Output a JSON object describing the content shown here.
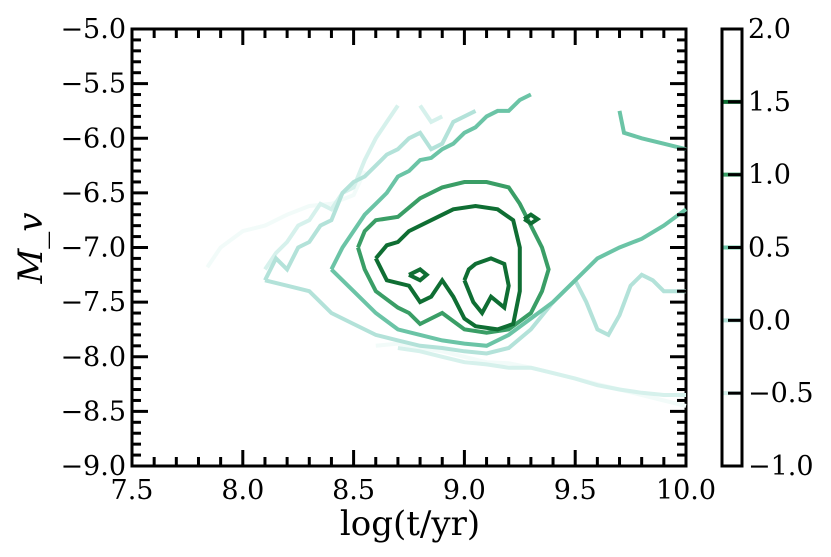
{
  "chart_data": {
    "type": "contour",
    "title": "",
    "xlabel": "log(t/yr)",
    "ylabel": "M_v",
    "xlim": [
      7.5,
      10.0
    ],
    "ylim": [
      -9.0,
      -5.0
    ],
    "y_axis_inverted": true,
    "x_ticks": [
      "7.5",
      "8.0",
      "8.5",
      "9.0",
      "9.5",
      "10.0"
    ],
    "y_ticks": [
      "−5.0",
      "−5.5",
      "−6.0",
      "−6.5",
      "−7.0",
      "−7.5",
      "−8.0",
      "−8.5",
      "−9.0"
    ],
    "colorbar": {
      "range": [
        -1.0,
        2.0
      ],
      "ticks": [
        "−1.0",
        "−0.5",
        "0.0",
        "0.5",
        "1.0",
        "1.5",
        "2.0"
      ],
      "level_lines": [
        -0.5,
        0.0,
        0.5,
        1.0,
        1.5
      ]
    },
    "colormap": "BuGn",
    "level_colors": {
      "-1.0": "#f2fbf9",
      "-0.5": "#d6f1ec",
      "0.0": "#b3e2d9",
      "0.5": "#6bc4a6",
      "1.0": "#3a9e66",
      "1.5": "#0f6e33"
    },
    "contours": [
      {
        "level": -1.0,
        "paths": [
          [
            [
              7.84,
              -7.18
            ],
            [
              7.9,
              -7.0
            ],
            [
              8.0,
              -6.85
            ],
            [
              8.1,
              -6.8
            ],
            [
              8.2,
              -6.7
            ],
            [
              8.3,
              -6.62
            ],
            [
              8.4,
              -6.6
            ],
            [
              8.5,
              -6.52
            ],
            [
              8.55,
              -6.3
            ]
          ],
          [
            [
              8.6,
              -7.9
            ],
            [
              8.7,
              -7.88
            ],
            [
              8.8,
              -7.92
            ],
            [
              8.9,
              -7.95
            ],
            [
              9.0,
              -8.0
            ],
            [
              9.1,
              -8.05
            ],
            [
              9.2,
              -8.06
            ],
            [
              9.3,
              -8.1
            ],
            [
              9.4,
              -8.15
            ],
            [
              9.5,
              -8.2
            ],
            [
              9.6,
              -8.25
            ],
            [
              9.7,
              -8.3
            ],
            [
              9.8,
              -8.35
            ],
            [
              9.9,
              -8.4
            ],
            [
              10.0,
              -8.45
            ]
          ]
        ]
      },
      {
        "level": -0.5,
        "paths": [
          [
            [
              8.1,
              -7.2
            ],
            [
              8.15,
              -7.05
            ],
            [
              8.2,
              -6.95
            ],
            [
              8.25,
              -6.8
            ],
            [
              8.3,
              -6.75
            ],
            [
              8.35,
              -6.6
            ],
            [
              8.4,
              -6.65
            ],
            [
              8.45,
              -6.5
            ],
            [
              8.5,
              -6.45
            ],
            [
              8.55,
              -6.2
            ],
            [
              8.6,
              -6.0
            ],
            [
              8.65,
              -5.85
            ],
            [
              8.7,
              -5.7
            ]
          ],
          [
            [
              8.8,
              -5.7
            ],
            [
              8.85,
              -5.85
            ],
            [
              8.9,
              -5.8
            ]
          ],
          [
            [
              8.7,
              -7.92
            ],
            [
              8.8,
              -7.95
            ],
            [
              8.9,
              -8.0
            ],
            [
              9.0,
              -8.05
            ],
            [
              9.1,
              -8.07
            ],
            [
              9.2,
              -8.1
            ],
            [
              9.3,
              -8.1
            ],
            [
              9.4,
              -8.15
            ],
            [
              9.5,
              -8.2
            ],
            [
              9.6,
              -8.26
            ],
            [
              9.7,
              -8.3
            ],
            [
              9.8,
              -8.33
            ],
            [
              9.9,
              -8.35
            ],
            [
              10.0,
              -8.35
            ]
          ]
        ]
      },
      {
        "level": 0.0,
        "paths": [
          [
            [
              8.1,
              -7.3
            ],
            [
              8.15,
              -7.1
            ],
            [
              8.2,
              -7.2
            ],
            [
              8.25,
              -7.0
            ],
            [
              8.3,
              -6.95
            ],
            [
              8.35,
              -6.8
            ],
            [
              8.4,
              -6.75
            ],
            [
              8.45,
              -6.5
            ],
            [
              8.5,
              -6.4
            ],
            [
              8.55,
              -6.35
            ],
            [
              8.6,
              -6.25
            ],
            [
              8.65,
              -6.15
            ],
            [
              8.7,
              -6.1
            ],
            [
              8.75,
              -6.0
            ],
            [
              8.8,
              -5.95
            ],
            [
              8.85,
              -6.1
            ],
            [
              8.9,
              -6.05
            ],
            [
              8.95,
              -5.85
            ],
            [
              9.0,
              -5.8
            ],
            [
              9.05,
              -5.75
            ]
          ],
          [
            [
              8.1,
              -7.3
            ],
            [
              8.2,
              -7.35
            ],
            [
              8.3,
              -7.4
            ],
            [
              8.4,
              -7.6
            ],
            [
              8.5,
              -7.7
            ],
            [
              8.6,
              -7.8
            ],
            [
              8.7,
              -7.85
            ],
            [
              8.8,
              -7.9
            ],
            [
              8.9,
              -7.92
            ],
            [
              9.0,
              -7.95
            ],
            [
              9.1,
              -7.97
            ],
            [
              9.2,
              -7.92
            ],
            [
              9.3,
              -7.75
            ],
            [
              9.4,
              -7.5
            ],
            [
              9.5,
              -7.3
            ],
            [
              9.55,
              -7.5
            ],
            [
              9.6,
              -7.75
            ],
            [
              9.65,
              -7.8
            ],
            [
              9.7,
              -7.62
            ],
            [
              9.75,
              -7.35
            ],
            [
              9.8,
              -7.25
            ],
            [
              9.85,
              -7.3
            ],
            [
              9.9,
              -7.4
            ],
            [
              10.0,
              -7.4
            ]
          ]
        ]
      },
      {
        "level": 0.5,
        "paths": [
          [
            [
              8.4,
              -7.2
            ],
            [
              8.45,
              -7.0
            ],
            [
              8.5,
              -6.85
            ],
            [
              8.55,
              -6.7
            ],
            [
              8.6,
              -6.6
            ],
            [
              8.65,
              -6.5
            ],
            [
              8.7,
              -6.35
            ],
            [
              8.75,
              -6.3
            ],
            [
              8.8,
              -6.2
            ],
            [
              8.85,
              -6.18
            ],
            [
              8.9,
              -6.1
            ],
            [
              8.95,
              -6.05
            ],
            [
              9.0,
              -5.95
            ],
            [
              9.05,
              -5.9
            ],
            [
              9.1,
              -5.8
            ],
            [
              9.15,
              -5.75
            ],
            [
              9.2,
              -5.75
            ],
            [
              9.25,
              -5.65
            ],
            [
              9.3,
              -5.6
            ]
          ],
          [
            [
              8.4,
              -7.2
            ],
            [
              8.5,
              -7.4
            ],
            [
              8.6,
              -7.6
            ],
            [
              8.7,
              -7.75
            ],
            [
              8.8,
              -7.8
            ],
            [
              8.9,
              -7.85
            ],
            [
              9.0,
              -7.88
            ],
            [
              9.1,
              -7.9
            ],
            [
              9.2,
              -7.8
            ],
            [
              9.3,
              -7.65
            ],
            [
              9.4,
              -7.5
            ],
            [
              9.5,
              -7.3
            ],
            [
              9.6,
              -7.1
            ],
            [
              9.7,
              -7.0
            ],
            [
              9.8,
              -6.92
            ],
            [
              9.9,
              -6.8
            ],
            [
              10.0,
              -6.65
            ]
          ],
          [
            [
              9.7,
              -5.75
            ],
            [
              9.72,
              -5.95
            ],
            [
              9.8,
              -6.0
            ],
            [
              9.9,
              -6.05
            ],
            [
              10.0,
              -6.1
            ]
          ]
        ]
      },
      {
        "level": 1.0,
        "paths": [
          [
            [
              8.52,
              -7.0
            ],
            [
              8.55,
              -6.85
            ],
            [
              8.6,
              -6.75
            ],
            [
              8.7,
              -6.72
            ],
            [
              8.8,
              -6.55
            ],
            [
              8.9,
              -6.45
            ],
            [
              9.0,
              -6.4
            ],
            [
              9.1,
              -6.4
            ],
            [
              9.2,
              -6.45
            ],
            [
              9.25,
              -6.6
            ],
            [
              9.3,
              -6.8
            ],
            [
              9.35,
              -7.0
            ],
            [
              9.38,
              -7.2
            ],
            [
              9.35,
              -7.4
            ],
            [
              9.3,
              -7.6
            ],
            [
              9.2,
              -7.75
            ],
            [
              9.1,
              -7.78
            ],
            [
              9.0,
              -7.75
            ],
            [
              8.9,
              -7.6
            ],
            [
              8.8,
              -7.7
            ],
            [
              8.75,
              -7.6
            ],
            [
              8.7,
              -7.55
            ],
            [
              8.6,
              -7.4
            ],
            [
              8.55,
              -7.2
            ],
            [
              8.52,
              -7.0
            ]
          ]
        ]
      },
      {
        "level": 1.5,
        "paths": [
          [
            [
              8.6,
              -7.1
            ],
            [
              8.65,
              -6.98
            ],
            [
              8.7,
              -6.95
            ],
            [
              8.75,
              -6.85
            ],
            [
              8.85,
              -6.75
            ],
            [
              8.95,
              -6.65
            ],
            [
              9.05,
              -6.62
            ],
            [
              9.15,
              -6.65
            ],
            [
              9.22,
              -6.75
            ],
            [
              9.25,
              -7.0
            ],
            [
              9.25,
              -7.4
            ],
            [
              9.22,
              -7.7
            ],
            [
              9.15,
              -7.75
            ],
            [
              9.05,
              -7.72
            ],
            [
              9.0,
              -7.65
            ],
            [
              8.95,
              -7.45
            ],
            [
              8.9,
              -7.3
            ],
            [
              8.85,
              -7.45
            ],
            [
              8.8,
              -7.5
            ],
            [
              8.75,
              -7.35
            ],
            [
              8.65,
              -7.3
            ],
            [
              8.6,
              -7.1
            ]
          ],
          [
            [
              9.27,
              -6.74
            ],
            [
              9.3,
              -6.7
            ],
            [
              9.33,
              -6.74
            ],
            [
              9.3,
              -6.78
            ],
            [
              9.27,
              -6.74
            ]
          ],
          [
            [
              8.75,
              -7.25
            ],
            [
              8.8,
              -7.2
            ],
            [
              8.83,
              -7.25
            ],
            [
              8.8,
              -7.3
            ],
            [
              8.75,
              -7.25
            ]
          ],
          [
            [
              9.0,
              -7.3
            ],
            [
              9.02,
              -7.2
            ],
            [
              9.05,
              -7.15
            ],
            [
              9.12,
              -7.1
            ],
            [
              9.18,
              -7.15
            ],
            [
              9.2,
              -7.35
            ],
            [
              9.18,
              -7.55
            ],
            [
              9.12,
              -7.45
            ],
            [
              9.08,
              -7.6
            ],
            [
              9.04,
              -7.5
            ],
            [
              9.0,
              -7.3
            ]
          ]
        ]
      }
    ]
  }
}
